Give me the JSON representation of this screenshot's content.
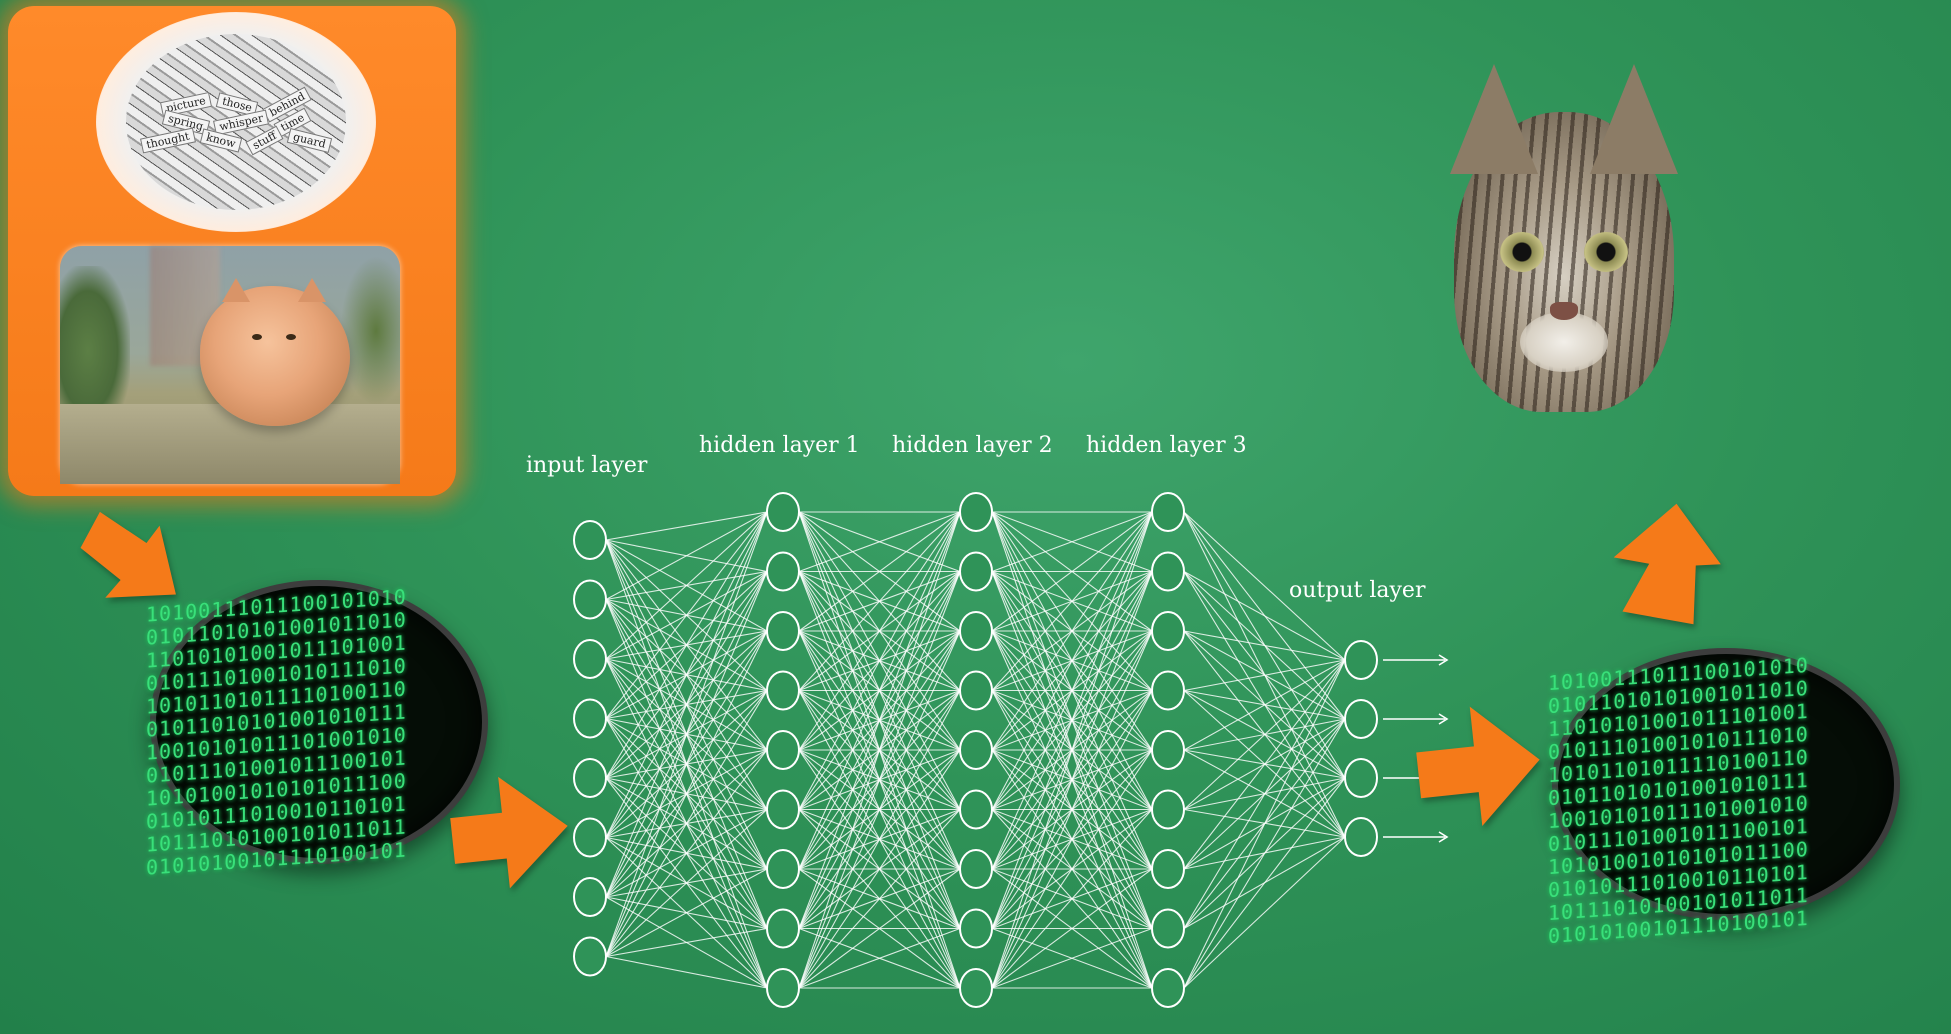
{
  "diagram": {
    "layers": [
      {
        "id": "input",
        "label": "input layer",
        "neurons": 8
      },
      {
        "id": "hidden1",
        "label": "hidden layer 1",
        "neurons": 9
      },
      {
        "id": "hidden2",
        "label": "hidden layer 2",
        "neurons": 9
      },
      {
        "id": "hidden3",
        "label": "hidden layer 3",
        "neurons": 9
      },
      {
        "id": "output",
        "label": "output layer",
        "neurons": 4
      }
    ],
    "output_arrows": 4,
    "fully_connected": true
  },
  "input_words": [
    "picture",
    "those",
    "behind",
    "spring",
    "whisper",
    "time",
    "thought",
    "know",
    "stuff",
    "guard"
  ],
  "binary_text": "10100111011100101010\n01011010101001011010\n11010101001011101001\n01011101001010111010\n10101101011110100110\n01011010101001010111\n10010101011101001010\n01011101001011100101\n10101001010101011100\n01010111010010110101\n10111010100101011011\n01010100101110100101",
  "colors": {
    "background": "#2f9358",
    "panel": "#f57a19",
    "arrow": "#f57a19",
    "network_lines": "#ffffff",
    "binary_digits": "#39e07a"
  }
}
